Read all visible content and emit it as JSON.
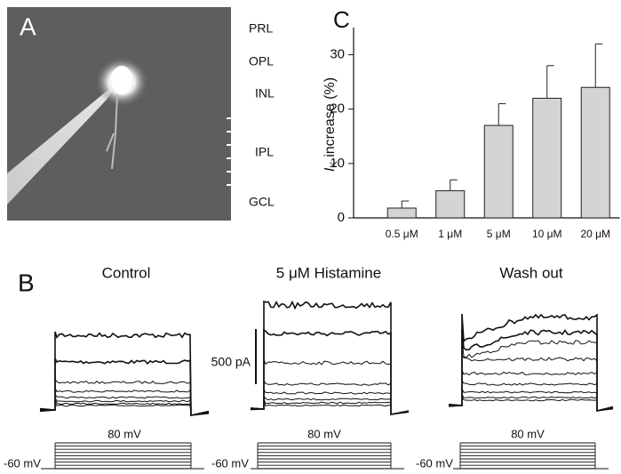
{
  "panel_a": {
    "label": "A",
    "layers": [
      "PRL",
      "OPL",
      "INL",
      "IPL",
      "GCL"
    ]
  },
  "chart_data": {
    "type": "bar",
    "label": "C",
    "y_label_symbol": "I",
    "y_label_subscript": "K",
    "y_label_text": " increase (%)",
    "categories": [
      "0.5 μM",
      "1 μM",
      "5 μM",
      "10 μM",
      "20 μM"
    ],
    "values": [
      1.8,
      5,
      17,
      22,
      24
    ],
    "errors": [
      1.3,
      2,
      4,
      6,
      8
    ],
    "ylim": [
      0,
      35
    ],
    "yticks": [
      0,
      10,
      20,
      30
    ],
    "color": "#d4d4d4"
  },
  "panel_b": {
    "label": "B",
    "conditions": [
      "Control",
      "5 μM Histamine",
      "Wash out"
    ],
    "scale_bar": "500 pA",
    "step_top": "80 mV",
    "holding": "-60 mV"
  }
}
